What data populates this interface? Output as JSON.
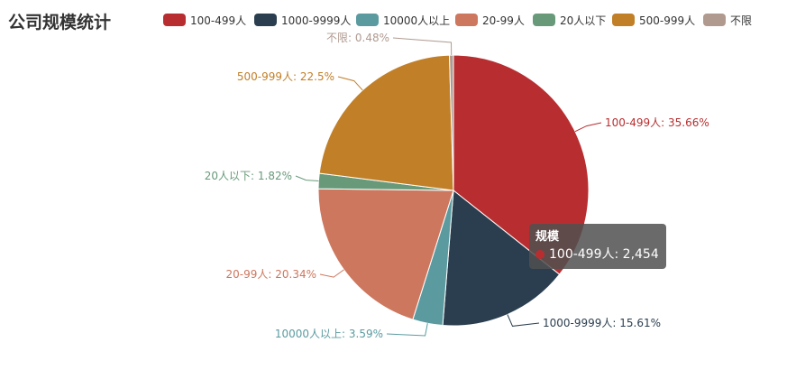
{
  "title": "公司规模统计",
  "chart_data": {
    "type": "pie",
    "series_name": "规模",
    "legend_position": "top",
    "slices": [
      {
        "name": "100-499人",
        "percent": 35.66,
        "color": "#b82e30",
        "label": "100-499人: 35.66%"
      },
      {
        "name": "1000-9999人",
        "percent": 15.61,
        "color": "#2b3e4f",
        "label": "1000-9999人: 15.61%"
      },
      {
        "name": "10000人以上",
        "percent": 3.59,
        "color": "#5b9ba0",
        "label": "10000人以上: 3.59%"
      },
      {
        "name": "20-99人",
        "percent": 20.34,
        "color": "#cd775e",
        "label": "20-99人: 20.34%"
      },
      {
        "name": "20人以下",
        "percent": 1.82,
        "color": "#689a7a",
        "label": "20人以下: 1.82%"
      },
      {
        "name": "500-999人",
        "percent": 22.5,
        "color": "#c17f28",
        "label": "500-999人: 22.5%"
      },
      {
        "name": "不限",
        "percent": 0.48,
        "color": "#b09a90",
        "label": "不限: 0.48%"
      }
    ]
  },
  "tooltip": {
    "title": "规模",
    "text": "100-499人: 2,454",
    "color": "#b82e30"
  }
}
